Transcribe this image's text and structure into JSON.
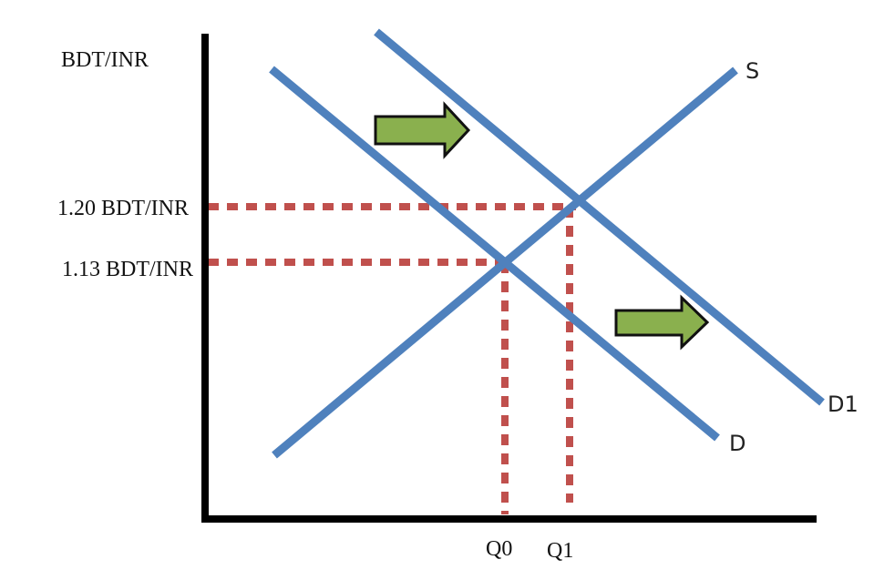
{
  "diagram": {
    "y_axis_label": "BDT/INR",
    "price_levels": {
      "p1": "1.20 BDT/INR",
      "p0": "1.13 BDT/INR"
    },
    "quantity_levels": {
      "q0": "Q0",
      "q1": "Q1"
    },
    "curves": {
      "supply": "S",
      "demand": "D",
      "demand_shifted": "D1"
    },
    "colors": {
      "curve": "#4f81bd",
      "guide": "#c0504d",
      "arrow_fill": "#8ab04e",
      "axis": "#000000"
    },
    "shift_arrows": [
      "right-arrow-icon",
      "right-arrow-icon"
    ]
  }
}
